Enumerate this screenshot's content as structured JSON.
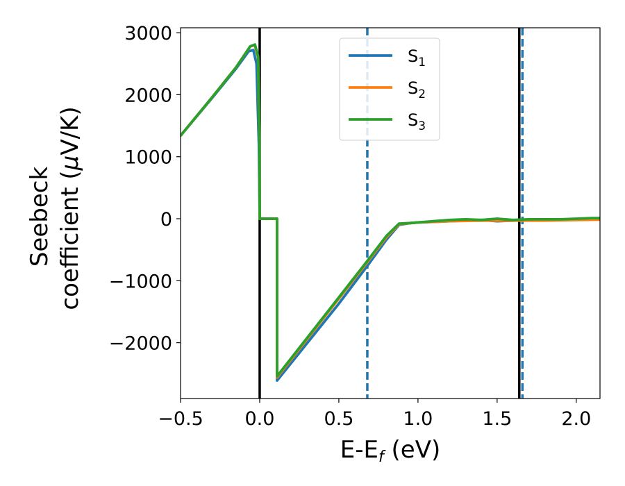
{
  "chart_data": {
    "type": "line",
    "title": "",
    "xlabel": {
      "main": "E-E",
      "sub": "f",
      "unit": " (eV)"
    },
    "ylabel": {
      "line1": "Seebeck",
      "line2_pre": "coefficient  (",
      "mu": "μ",
      "line2_post": "V/K)"
    },
    "xlim": [
      -0.5,
      2.15
    ],
    "ylim": [
      -2900,
      3080
    ],
    "xticks": [
      -0.5,
      0.0,
      0.5,
      1.0,
      1.5,
      2.0
    ],
    "xtick_labels": [
      "−0.5",
      "0.0",
      "0.5",
      "1.0",
      "1.5",
      "2.0"
    ],
    "yticks": [
      3000,
      2000,
      1000,
      0,
      -1000,
      -2000
    ],
    "ytick_labels": [
      "3000",
      "2000",
      "1000",
      "0",
      "−1000",
      "−2000"
    ],
    "grid": false,
    "legend_position": "top-center",
    "series": [
      {
        "name": "S",
        "sub": "1",
        "color": "#1f77b4",
        "x": [
          -0.5,
          -0.3,
          -0.15,
          -0.07,
          -0.04,
          -0.02,
          -0.005,
          0.0,
          0.11,
          0.11,
          0.5,
          0.68,
          0.8,
          0.88,
          0.95,
          1.0,
          1.2,
          1.4,
          1.5,
          1.6,
          1.7,
          1.9,
          2.0,
          2.15
        ],
        "y": [
          1340,
          1950,
          2420,
          2700,
          2720,
          2500,
          1200,
          0,
          0,
          -2610,
          -1370,
          -760,
          -340,
          -100,
          -70,
          -60,
          -40,
          -20,
          -40,
          -30,
          -20,
          -15,
          -10,
          10
        ]
      },
      {
        "name": "S",
        "sub": "2",
        "color": "#ff7f0e",
        "x": [
          -0.5,
          -0.3,
          -0.15,
          -0.06,
          -0.03,
          -0.01,
          -0.002,
          0.0,
          0.11,
          0.11,
          0.5,
          0.68,
          0.8,
          0.88,
          0.95,
          1.0,
          1.2,
          1.4,
          1.6,
          1.8,
          2.0,
          2.15
        ],
        "y": [
          1340,
          1960,
          2440,
          2780,
          2800,
          2600,
          1300,
          0,
          0,
          -2560,
          -1290,
          -700,
          -300,
          -90,
          -70,
          -60,
          -40,
          -30,
          -30,
          -30,
          -20,
          -15
        ]
      },
      {
        "name": "S",
        "sub": "3",
        "color": "#2ca02c",
        "x": [
          -0.5,
          -0.3,
          -0.15,
          -0.06,
          -0.03,
          -0.01,
          -0.002,
          0.0,
          0.11,
          0.11,
          0.5,
          0.68,
          0.8,
          0.88,
          0.95,
          1.0,
          1.2,
          1.3,
          1.4,
          1.5,
          1.6,
          1.7,
          1.9,
          2.0,
          2.1,
          2.15
        ],
        "y": [
          1340,
          1960,
          2440,
          2780,
          2810,
          2620,
          1320,
          0,
          0,
          -2540,
          -1270,
          -680,
          -280,
          -80,
          -70,
          -60,
          -20,
          -10,
          -20,
          0,
          -20,
          -10,
          -10,
          0,
          10,
          10
        ]
      }
    ],
    "vertical_lines": [
      {
        "x": 0.0,
        "color": "#000000",
        "style": "solid"
      },
      {
        "x": 1.64,
        "color": "#000000",
        "style": "solid"
      },
      {
        "x": 0.68,
        "color": "#1f77b4",
        "style": "dashed"
      },
      {
        "x": 1.66,
        "color": "#1f77b4",
        "style": "dashed"
      }
    ]
  }
}
